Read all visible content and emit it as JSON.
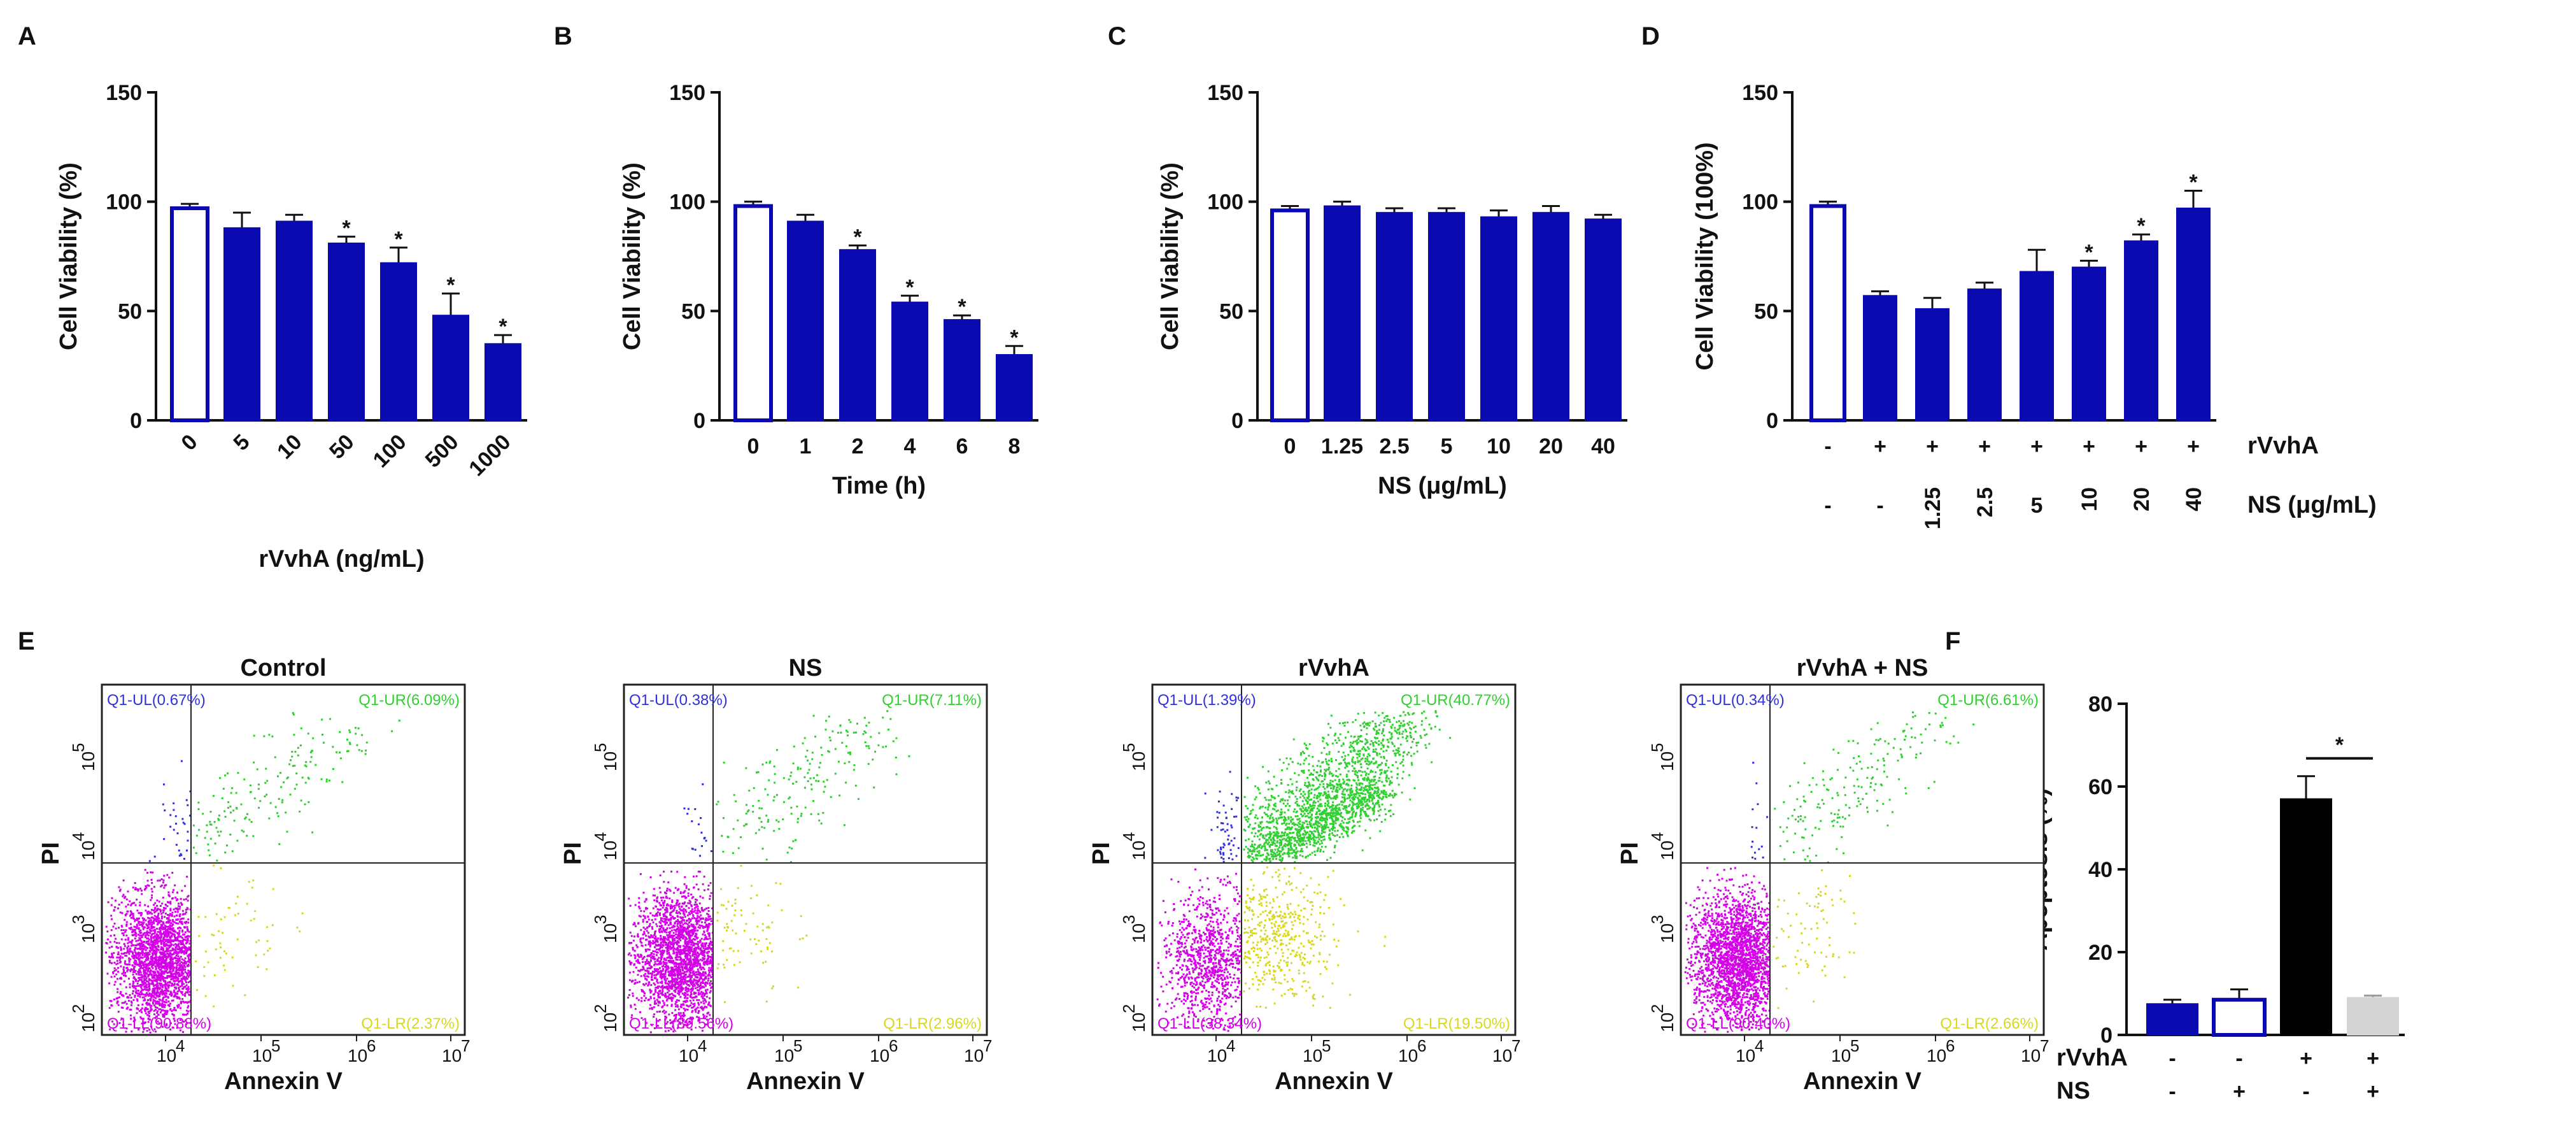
{
  "colors": {
    "bar_fill": "#0A0AB0",
    "bar_open_stroke": "#0A0AB0",
    "bar_black": "#000000",
    "bar_gray": "#D4D4D4",
    "dots_ll": "#D400E8",
    "dots_ul": "#3030E0",
    "dots_ur": "#30D030",
    "dots_lr": "#D8D820",
    "axis": "#111111"
  },
  "chart_data": [
    {
      "type": "bar",
      "panel": "A",
      "title": "",
      "categories": [
        "0",
        "5",
        "10",
        "50",
        "100",
        "500",
        "1000"
      ],
      "values": [
        97,
        88,
        91,
        81,
        72,
        48,
        35
      ],
      "errors": [
        2,
        7,
        3,
        3,
        7,
        10,
        4
      ],
      "open_bars": [
        0
      ],
      "significance": [
        "",
        "",
        "",
        "*",
        "*",
        "*",
        "*"
      ],
      "xlabel": "rVvhA (ng/mL)",
      "ylabel": "Cell Viability (%)",
      "ylim": [
        0,
        150
      ],
      "yticks": [
        "0",
        "50",
        "100",
        "150"
      ],
      "xtick_rotation": -45
    },
    {
      "type": "bar",
      "panel": "B",
      "title": "",
      "categories": [
        "0",
        "1",
        "2",
        "4",
        "6",
        "8"
      ],
      "values": [
        98,
        91,
        78,
        54,
        46,
        30
      ],
      "errors": [
        2,
        3,
        2,
        3,
        2,
        4
      ],
      "open_bars": [
        0
      ],
      "significance": [
        "",
        "",
        "*",
        "*",
        "*",
        "*"
      ],
      "xlabel": "Time (h)",
      "ylabel": "Cell Viability (%)",
      "ylim": [
        0,
        150
      ],
      "yticks": [
        "0",
        "50",
        "100",
        "150"
      ],
      "xtick_rotation": 0
    },
    {
      "type": "bar",
      "panel": "C",
      "title": "",
      "categories": [
        "0",
        "1.25",
        "2.5",
        "5",
        "10",
        "20",
        "40"
      ],
      "values": [
        96,
        98,
        95,
        95,
        93,
        95,
        92
      ],
      "errors": [
        2,
        2,
        2,
        2,
        3,
        3,
        2
      ],
      "open_bars": [
        0
      ],
      "significance": [
        "",
        "",
        "",
        "",
        "",
        "",
        ""
      ],
      "xlabel": "NS (μg/mL)",
      "ylabel": "Cell Viability (%)",
      "ylim": [
        0,
        150
      ],
      "yticks": [
        "0",
        "50",
        "100",
        "150"
      ],
      "xtick_rotation": 0
    },
    {
      "type": "bar",
      "panel": "D",
      "title": "",
      "categories": [
        "1",
        "2",
        "3",
        "4",
        "5",
        "6",
        "7",
        "8"
      ],
      "values": [
        98,
        57,
        51,
        60,
        68,
        70,
        82,
        97
      ],
      "errors": [
        2,
        2,
        5,
        3,
        10,
        3,
        3,
        8
      ],
      "open_bars": [
        0
      ],
      "significance": [
        "",
        "",
        "",
        "",
        "",
        "*",
        "*",
        "*"
      ],
      "row_labels": [
        "rVvhA",
        "NS (μg/mL)"
      ],
      "row1": [
        "-",
        "+",
        "+",
        "+",
        "+",
        "+",
        "+",
        "+"
      ],
      "row2": [
        "-",
        "-",
        "1.25",
        "2.5",
        "5",
        "10",
        "20",
        "40"
      ],
      "xlabel": "",
      "ylabel": "Cell Viability (100%)",
      "ylim": [
        0,
        150
      ],
      "yticks": [
        "0",
        "50",
        "100",
        "150"
      ]
    },
    {
      "type": "bar",
      "panel": "F",
      "title": "",
      "categories": [
        "1",
        "2",
        "3",
        "4"
      ],
      "values": [
        7.5,
        8.5,
        57,
        9
      ],
      "errors": [
        1,
        2.5,
        5.5,
        0.5
      ],
      "bar_styles": [
        "filled",
        "open",
        "black",
        "gray"
      ],
      "comparison": {
        "from": 2,
        "to": 3,
        "label": "*"
      },
      "row_labels": [
        "rVvhA",
        "NS"
      ],
      "row1": [
        "-",
        "-",
        "+",
        "+"
      ],
      "row2": [
        "-",
        "+",
        "-",
        "+"
      ],
      "xlabel": "",
      "ylabel": "Apoptosis (%)",
      "ylim": [
        0,
        80
      ],
      "yticks": [
        "0",
        "20",
        "40",
        "60",
        "80"
      ]
    },
    {
      "type": "scatter",
      "panel": "E",
      "subtype": "flow-cytometry",
      "xlabel": "Annexin V",
      "ylabel": "PI",
      "x_ticks": [
        {
          "base": "10",
          "exp": "4"
        },
        {
          "base": "10",
          "exp": "5"
        },
        {
          "base": "10",
          "exp": "6"
        },
        {
          "base": "10",
          "exp": "7"
        }
      ],
      "y_ticks": [
        {
          "base": "10",
          "exp": "2"
        },
        {
          "base": "10",
          "exp": "3"
        },
        {
          "base": "10",
          "exp": "4"
        },
        {
          "base": "10",
          "exp": "5"
        }
      ],
      "plots": [
        {
          "title": "Control",
          "ul": "Q1-UL(0.67%)",
          "ur": "Q1-UR(6.09%)",
          "ll": "Q1-LL(90.88%)",
          "lr": "Q1-LR(2.37%)",
          "ul_pct": 0.67,
          "ur_pct": 6.09,
          "ll_pct": 90.88,
          "lr_pct": 2.37
        },
        {
          "title": "NS",
          "ul": "Q1-UL(0.38%)",
          "ur": "Q1-UR(7.11%)",
          "ll": "Q1-LL(89.56%)",
          "lr": "Q1-LR(2.96%)",
          "ul_pct": 0.38,
          "ur_pct": 7.11,
          "ll_pct": 89.56,
          "lr_pct": 2.96
        },
        {
          "title": "rVvhA",
          "ul": "Q1-UL(1.39%)",
          "ur": "Q1-UR(40.77%)",
          "ll": "Q1-LL(38.34%)",
          "lr": "Q1-LR(19.50%)",
          "ul_pct": 1.39,
          "ur_pct": 40.77,
          "ll_pct": 38.34,
          "lr_pct": 19.5
        },
        {
          "title": "rVvhA + NS",
          "ul": "Q1-UL(0.34%)",
          "ur": "Q1-UR(6.61%)",
          "ll": "Q1-LL(90.40%)",
          "lr": "Q1-LR(2.66%)",
          "ul_pct": 0.34,
          "ur_pct": 6.61,
          "ll_pct": 90.4,
          "lr_pct": 2.66
        }
      ]
    }
  ]
}
